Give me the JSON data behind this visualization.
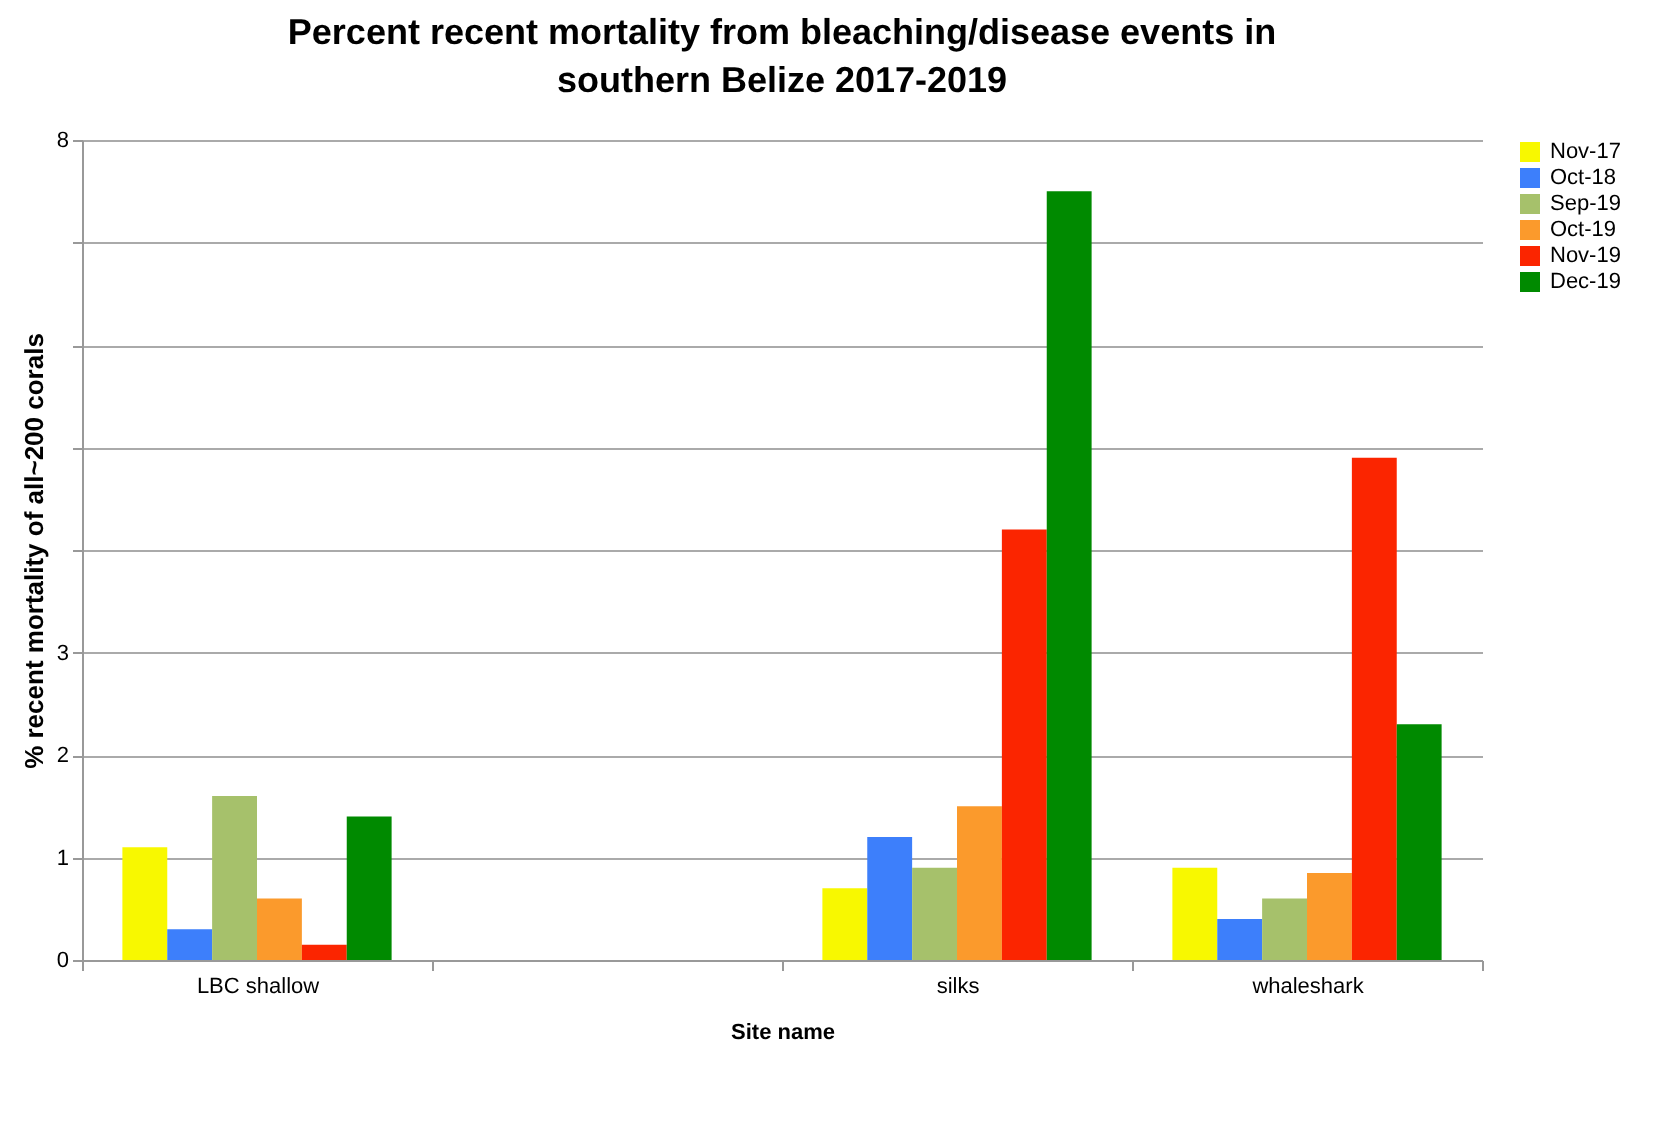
{
  "chart_data": {
    "type": "bar",
    "title": "Percent recent mortality from bleaching/disease events in southern Belize 2017-2019",
    "xlabel": "Site name",
    "ylabel": "% recent mortality of all~200 corals",
    "categories": [
      "LBC shallow",
      null,
      "silks",
      "whaleshark"
    ],
    "series": [
      {
        "name": "Nov-17",
        "color": "#f8f800",
        "values": [
          1.1,
          null,
          0.7,
          0.9
        ]
      },
      {
        "name": "Oct-18",
        "color": "#3d7ffb",
        "values": [
          0.3,
          null,
          1.2,
          0.4
        ]
      },
      {
        "name": "Sep-19",
        "color": "#a6c16b",
        "values": [
          1.6,
          null,
          0.9,
          0.6
        ]
      },
      {
        "name": "Oct-19",
        "color": "#fb9a2c",
        "values": [
          0.6,
          null,
          1.5,
          0.85
        ]
      },
      {
        "name": "Nov-19",
        "color": "#fb2500",
        "values": [
          0.15,
          null,
          4.2,
          4.9
        ]
      },
      {
        "name": "Dec-19",
        "color": "#008a00",
        "values": [
          1.4,
          null,
          7.5,
          2.3
        ]
      }
    ],
    "ylim": [
      0,
      8
    ],
    "yticks": [
      0,
      1,
      2,
      3,
      {
        "value": 4,
        "label": null
      },
      {
        "value": 5,
        "label": null
      },
      {
        "value": 6,
        "label": null
      },
      {
        "value": 7,
        "label": null
      },
      8
    ],
    "grid": "y",
    "legend": "right"
  }
}
